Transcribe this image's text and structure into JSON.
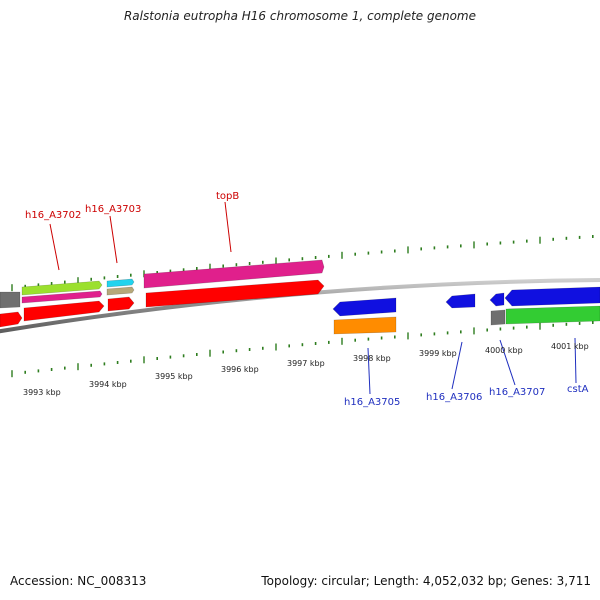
{
  "title": "Ralstonia eutropha H16 chromosome 1, complete genome",
  "accession": "Accession: NC_008313",
  "summary": "Topology: circular; Length: 4,052,032 bp; Genes: 3,711",
  "colors": {
    "tick": "#2e7d1f",
    "label_top": "#cc0000",
    "label_bottom": "#1f2fbf",
    "backbone": "#8a8a8a"
  },
  "kbp_labels": [
    {
      "text": "3993 kbp",
      "kbp": 3993
    },
    {
      "text": "3994 kbp",
      "kbp": 3994
    },
    {
      "text": "3995 kbp",
      "kbp": 3995
    },
    {
      "text": "3996 kbp",
      "kbp": 3996
    },
    {
      "text": "3997 kbp",
      "kbp": 3997
    },
    {
      "text": "3998 kbp",
      "kbp": 3998
    },
    {
      "text": "3999 kbp",
      "kbp": 3999
    },
    {
      "text": "4000 kbp",
      "kbp": 4000
    },
    {
      "text": "4001 kbp",
      "kbp": 4001
    }
  ],
  "gene_labels_top": [
    {
      "text": "h16_A3702"
    },
    {
      "text": "h16_A3703"
    },
    {
      "text": "topB"
    }
  ],
  "gene_labels_bottom": [
    {
      "text": "h16_A3705"
    },
    {
      "text": "h16_A3706"
    },
    {
      "text": "h16_A3707"
    },
    {
      "text": "cstA"
    }
  ],
  "features": [
    {
      "name": "feature-gray-left",
      "color": "#6f6f6f",
      "strand": "none"
    },
    {
      "name": "feature-lime",
      "color": "#9be02e",
      "strand": "plus"
    },
    {
      "name": "feature-magenta-small",
      "color": "#e0208c",
      "strand": "plus"
    },
    {
      "name": "feature-red-small",
      "color": "#ff0000",
      "strand": "plus"
    },
    {
      "name": "feature-cyan",
      "color": "#22d3ee",
      "strand": "plus"
    },
    {
      "name": "feature-tan",
      "color": "#b6a87a",
      "strand": "plus"
    },
    {
      "name": "feature-magenta-topB",
      "color": "#e0208c",
      "strand": "plus"
    },
    {
      "name": "feature-red-topB",
      "color": "#ff0000",
      "strand": "plus"
    },
    {
      "name": "feature-red-edge",
      "color": "#ff0000",
      "strand": "plus"
    },
    {
      "name": "feature-red-mid",
      "color": "#ff0000",
      "strand": "plus"
    },
    {
      "name": "feature-blue-h16_A3705",
      "color": "#1010e0",
      "strand": "minus"
    },
    {
      "name": "feature-orange-h16_A3705",
      "color": "#ff8c00",
      "strand": "none"
    },
    {
      "name": "feature-blue-h16_A3706",
      "color": "#1010e0",
      "strand": "minus"
    },
    {
      "name": "feature-blue-small",
      "color": "#1010e0",
      "strand": "minus"
    },
    {
      "name": "feature-blue-cstA",
      "color": "#1010e0",
      "strand": "minus"
    },
    {
      "name": "feature-gray-cstA",
      "color": "#6f6f6f",
      "strand": "none"
    },
    {
      "name": "feature-green-cstA",
      "color": "#33cc33",
      "strand": "plus"
    }
  ]
}
